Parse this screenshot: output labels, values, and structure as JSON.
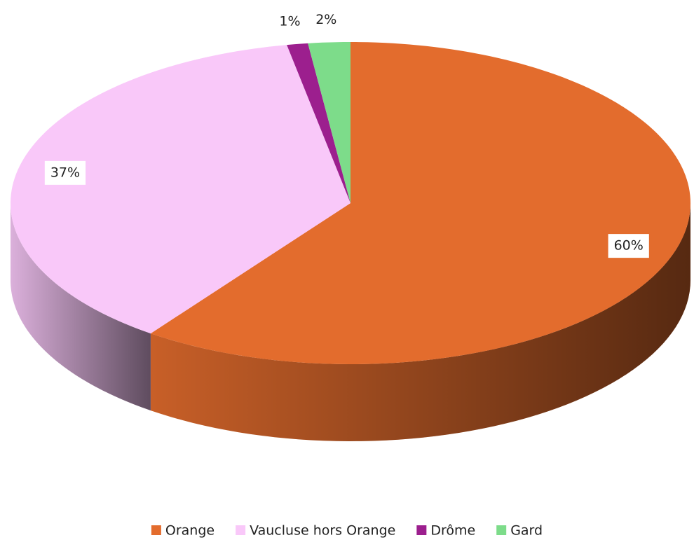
{
  "chart_data": {
    "type": "pie",
    "categories": [
      "Orange",
      "Vaucluse hors Orange",
      "Drôme",
      "Gard"
    ],
    "values": [
      60,
      37,
      1,
      2
    ],
    "value_labels": [
      "60%",
      "37%",
      "1%",
      "2%"
    ],
    "colors": [
      "#e36c2d",
      "#f9c8f9",
      "#9c1f8e",
      "#7ddc8a"
    ],
    "legend": "bottom"
  }
}
